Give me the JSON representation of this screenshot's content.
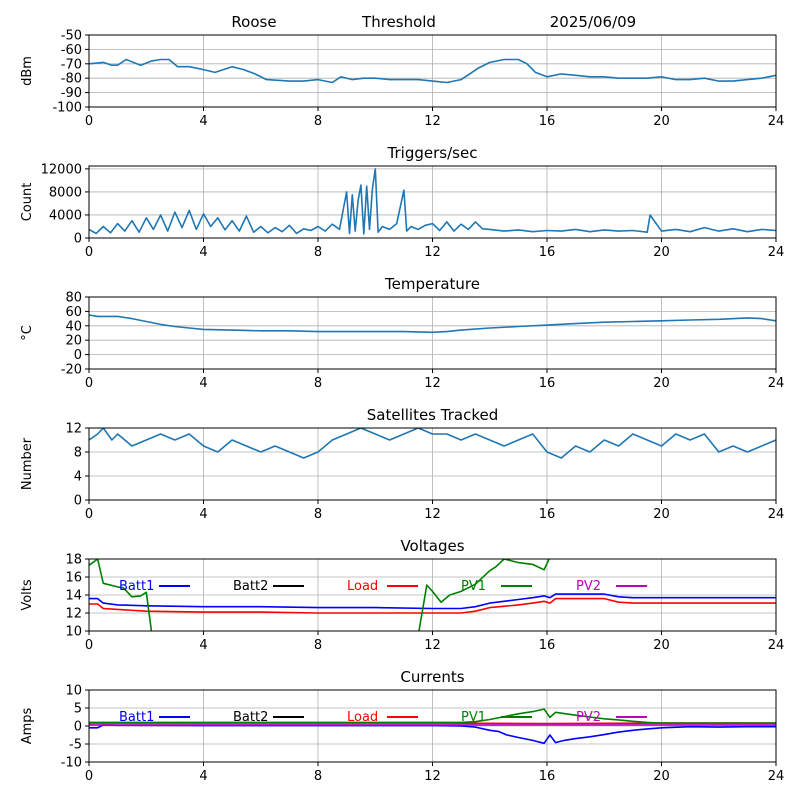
{
  "header": {
    "station": "Roose",
    "label": "Threshold",
    "date": "2025/06/09"
  },
  "colors": {
    "series_default": "#1f77b4",
    "grid": "#b0b0b0",
    "Batt1": "#0000ff",
    "Batt2": "#000000",
    "Load": "#ff0000",
    "PV1": "#008000",
    "PV2": "#bf00bf"
  },
  "chart_data": [
    {
      "type": "line",
      "title": "",
      "ylabel": "dBm",
      "xlim": [
        0,
        24
      ],
      "ylim": [
        -100,
        -50
      ],
      "yticks": [
        -100,
        -90,
        -80,
        -70,
        -60,
        -50
      ],
      "xticks": [
        0,
        4,
        8,
        12,
        16,
        20,
        24
      ],
      "grid": true,
      "series": [
        {
          "x": [
            0,
            0.5,
            0.8,
            1.0,
            1.3,
            1.8,
            2.2,
            2.5,
            2.8,
            3.1,
            3.5,
            4.0,
            4.4,
            5.0,
            5.4,
            5.8,
            6.2,
            7.0,
            7.5,
            8.0,
            8.5,
            8.8,
            9.2,
            9.6,
            10.0,
            10.5,
            11.0,
            11.5,
            12.0,
            12.5,
            13.0,
            13.3,
            13.6,
            14.0,
            14.5,
            15.0,
            15.3,
            15.6,
            16.0,
            16.5,
            17.0,
            17.5,
            18.0,
            18.5,
            19.0,
            19.5,
            20.0,
            20.5,
            21.0,
            21.5,
            22.0,
            22.5,
            23.0,
            23.5,
            24.0
          ],
          "values": [
            -70,
            -69,
            -71,
            -71,
            -67,
            -71,
            -68,
            -67,
            -67,
            -72,
            -72,
            -74,
            -76,
            -72,
            -74,
            -77,
            -81,
            -82,
            -82,
            -81,
            -83,
            -79,
            -81,
            -80,
            -80,
            -81,
            -81,
            -81,
            -82,
            -83,
            -81,
            -77,
            -73,
            -69,
            -67,
            -67,
            -70,
            -76,
            -79,
            -77,
            -78,
            -79,
            -79,
            -80,
            -80,
            -80,
            -79,
            -81,
            -81,
            -80,
            -82,
            -82,
            -81,
            -80,
            -78
          ]
        }
      ]
    },
    {
      "type": "line",
      "title": "Triggers/sec",
      "ylabel": "Count",
      "xlim": [
        0,
        24
      ],
      "ylim": [
        0,
        12500
      ],
      "yticks": [
        0,
        4000,
        8000,
        12000
      ],
      "xticks": [
        0,
        4,
        8,
        12,
        16,
        20,
        24
      ],
      "grid": true,
      "series": [
        {
          "x": [
            0,
            0.25,
            0.5,
            0.75,
            1.0,
            1.25,
            1.5,
            1.75,
            2.0,
            2.25,
            2.5,
            2.75,
            3.0,
            3.25,
            3.5,
            3.75,
            4.0,
            4.25,
            4.5,
            4.75,
            5.0,
            5.25,
            5.5,
            5.75,
            6.0,
            6.25,
            6.5,
            6.75,
            7.0,
            7.25,
            7.5,
            7.75,
            8.0,
            8.25,
            8.5,
            8.75,
            9.0,
            9.1,
            9.2,
            9.3,
            9.4,
            9.5,
            9.6,
            9.7,
            9.8,
            9.9,
            10.0,
            10.1,
            10.25,
            10.5,
            10.75,
            11.0,
            11.1,
            11.25,
            11.5,
            11.75,
            12.0,
            12.25,
            12.5,
            12.75,
            13.0,
            13.25,
            13.5,
            13.75,
            14.0,
            14.5,
            15.0,
            15.5,
            16.0,
            16.5,
            17.0,
            17.5,
            18.0,
            18.5,
            19.0,
            19.5,
            19.6,
            20.0,
            20.5,
            21.0,
            21.5,
            22.0,
            22.5,
            23.0,
            23.5,
            24.0
          ],
          "values": [
            1500,
            800,
            2000,
            900,
            2500,
            1200,
            3000,
            1000,
            3500,
            1500,
            4000,
            1200,
            4500,
            1800,
            4800,
            1500,
            4200,
            2000,
            3500,
            1400,
            3000,
            1200,
            3800,
            1000,
            2000,
            900,
            1800,
            1100,
            2200,
            800,
            1600,
            1300,
            2000,
            1200,
            2400,
            1500,
            8000,
            800,
            7500,
            1200,
            6500,
            9200,
            700,
            9000,
            1500,
            8500,
            12000,
            1000,
            2000,
            1500,
            2500,
            8300,
            1200,
            2000,
            1500,
            2200,
            2500,
            1300,
            2800,
            1200,
            2400,
            1500,
            2800,
            1600,
            1500,
            1200,
            1400,
            1100,
            1300,
            1200,
            1500,
            1100,
            1400,
            1200,
            1300,
            1000,
            4000,
            1200,
            1500,
            1100,
            1800,
            1200,
            1600,
            1100,
            1500,
            1300
          ]
        }
      ]
    },
    {
      "type": "line",
      "title": "Temperature",
      "ylabel": "°C",
      "xlim": [
        0,
        24
      ],
      "ylim": [
        -20,
        80
      ],
      "yticks": [
        -20,
        0,
        20,
        40,
        60,
        80
      ],
      "xticks": [
        0,
        4,
        8,
        12,
        16,
        20,
        24
      ],
      "grid": true,
      "series": [
        {
          "x": [
            0,
            0.3,
            1.0,
            1.5,
            2.0,
            2.5,
            3.0,
            3.5,
            4.0,
            5.0,
            6.0,
            7.0,
            8.0,
            9.0,
            10.0,
            11.0,
            12.0,
            12.5,
            13.0,
            14.0,
            15.0,
            16.0,
            17.0,
            18.0,
            19.0,
            20.0,
            21.0,
            22.0,
            23.0,
            23.5,
            24.0
          ],
          "values": [
            55,
            53,
            53,
            50,
            46,
            42,
            39,
            37,
            35,
            34,
            33,
            33,
            32,
            32,
            32,
            32,
            31,
            32,
            34,
            37,
            39,
            41,
            43,
            45,
            46,
            47,
            48,
            49,
            51,
            50,
            47
          ]
        }
      ]
    },
    {
      "type": "line",
      "title": "Satellites Tracked",
      "ylabel": "Number",
      "xlim": [
        0,
        24
      ],
      "ylim": [
        0,
        12
      ],
      "yticks": [
        0,
        4,
        8,
        12
      ],
      "xticks": [
        0,
        4,
        8,
        12,
        16,
        20,
        24
      ],
      "grid": true,
      "series": [
        {
          "x": [
            0,
            0.3,
            0.5,
            0.8,
            1.0,
            1.5,
            2.0,
            2.5,
            3.0,
            3.5,
            4.0,
            4.5,
            5.0,
            5.5,
            6.0,
            6.5,
            7.0,
            7.5,
            8.0,
            8.5,
            9.0,
            9.5,
            10.0,
            10.5,
            11.0,
            11.5,
            12.0,
            12.5,
            13.0,
            13.5,
            14.0,
            14.5,
            15.0,
            15.5,
            16.0,
            16.5,
            17.0,
            17.5,
            18.0,
            18.5,
            19.0,
            19.5,
            20.0,
            20.5,
            21.0,
            21.5,
            22.0,
            22.5,
            23.0,
            23.5,
            24.0
          ],
          "values": [
            10,
            11,
            12,
            10,
            11,
            9,
            10,
            11,
            10,
            11,
            9,
            8,
            10,
            9,
            8,
            9,
            8,
            7,
            8,
            10,
            11,
            12,
            11,
            10,
            11,
            12,
            11,
            11,
            10,
            11,
            10,
            9,
            10,
            11,
            8,
            7,
            9,
            8,
            10,
            9,
            11,
            10,
            9,
            11,
            10,
            11,
            8,
            9,
            8,
            9,
            10
          ]
        }
      ]
    },
    {
      "type": "line",
      "title": "Voltages",
      "ylabel": "Volts",
      "xlim": [
        0,
        24
      ],
      "ylim": [
        10,
        18
      ],
      "yticks": [
        10,
        12,
        14,
        16,
        18
      ],
      "xticks": [
        0,
        4,
        8,
        12,
        16,
        20,
        24
      ],
      "grid": true,
      "legend": "top, inline",
      "series": [
        {
          "name": "Batt1",
          "x": [
            0,
            0.3,
            0.5,
            1.0,
            2.0,
            4.0,
            6.0,
            8.0,
            10.0,
            12.0,
            13.0,
            13.5,
            14.0,
            15.0,
            15.5,
            15.9,
            16.1,
            16.3,
            18.0,
            18.5,
            19.0,
            20.0,
            22.0,
            24.0
          ],
          "values": [
            13.6,
            13.6,
            13.1,
            12.9,
            12.8,
            12.7,
            12.7,
            12.6,
            12.6,
            12.5,
            12.5,
            12.7,
            13.1,
            13.5,
            13.7,
            13.9,
            13.7,
            14.1,
            14.1,
            13.8,
            13.7,
            13.7,
            13.7,
            13.7
          ]
        },
        {
          "name": "Load",
          "x": [
            0,
            0.3,
            0.5,
            1.0,
            2.0,
            4.0,
            6.0,
            8.0,
            10.0,
            12.0,
            13.0,
            13.5,
            14.0,
            15.0,
            15.5,
            15.9,
            16.1,
            16.3,
            18.0,
            18.5,
            19.0,
            20.0,
            22.0,
            24.0
          ],
          "values": [
            13.0,
            13.0,
            12.5,
            12.4,
            12.2,
            12.1,
            12.1,
            12.0,
            12.0,
            12.0,
            12.0,
            12.2,
            12.6,
            12.9,
            13.1,
            13.3,
            13.1,
            13.6,
            13.6,
            13.2,
            13.1,
            13.1,
            13.1,
            13.1
          ]
        },
        {
          "name": "PV1",
          "x": [
            0,
            0.3,
            0.5,
            1.0,
            1.2,
            1.5,
            1.8,
            2.0,
            2.2,
            11.5,
            11.8,
            12.0,
            12.3,
            12.6,
            13.0,
            13.5,
            14.0,
            14.2,
            14.5,
            15.0,
            15.5,
            15.9,
            16.1
          ],
          "values": [
            17.3,
            18.0,
            15.3,
            14.9,
            14.8,
            13.8,
            13.9,
            14.3,
            9.5,
            9.5,
            15.1,
            14.4,
            13.2,
            14.0,
            14.4,
            15.2,
            16.7,
            17.1,
            18.0,
            17.6,
            17.4,
            16.8,
            18.2
          ]
        },
        {
          "name": "Batt2",
          "x": [],
          "values": []
        },
        {
          "name": "PV2",
          "x": [],
          "values": []
        }
      ]
    },
    {
      "type": "line",
      "title": "Currents",
      "ylabel": "Amps",
      "xlim": [
        0,
        24
      ],
      "ylim": [
        -10,
        10
      ],
      "yticks": [
        -10,
        -5,
        0,
        5,
        10
      ],
      "xticks": [
        0,
        4,
        8,
        12,
        16,
        20,
        24
      ],
      "grid": true,
      "legend": "top, inline",
      "series": [
        {
          "name": "Batt1",
          "x": [
            0,
            0.3,
            0.5,
            1.0,
            4.0,
            8.0,
            12.0,
            13.0,
            13.5,
            14.0,
            14.3,
            14.6,
            15.0,
            15.5,
            15.9,
            16.1,
            16.3,
            16.6,
            17.0,
            17.5,
            18.0,
            18.5,
            19.0,
            19.5,
            20.0,
            21.0,
            22.0,
            23.0,
            24.0
          ],
          "values": [
            -0.5,
            -0.5,
            0.3,
            0.2,
            0.1,
            0.1,
            0.1,
            0.0,
            -0.3,
            -1.2,
            -1.5,
            -2.5,
            -3.2,
            -4.0,
            -4.8,
            -2.5,
            -4.6,
            -4.0,
            -3.5,
            -3.0,
            -2.4,
            -1.7,
            -1.2,
            -0.8,
            -0.5,
            -0.2,
            -0.3,
            -0.2,
            -0.2
          ]
        },
        {
          "name": "Load",
          "x": [
            0,
            4,
            8,
            12,
            16,
            20,
            24
          ],
          "values": [
            0.8,
            0.8,
            0.8,
            0.8,
            0.7,
            0.8,
            0.8
          ]
        },
        {
          "name": "PV1",
          "x": [
            0,
            4,
            8,
            12,
            13.0,
            13.5,
            14.0,
            14.5,
            15.0,
            15.5,
            15.9,
            16.1,
            16.3,
            17.0,
            17.5,
            18.0,
            18.5,
            19.0,
            19.5,
            20.0,
            24.0
          ],
          "values": [
            1.0,
            1.0,
            1.0,
            1.0,
            1.0,
            1.2,
            1.8,
            2.6,
            3.4,
            4.0,
            4.7,
            2.4,
            3.8,
            3.0,
            2.5,
            2.0,
            1.7,
            1.3,
            1.0,
            0.8,
            0.8
          ]
        },
        {
          "name": "Batt2",
          "x": [],
          "values": []
        },
        {
          "name": "PV2",
          "x": [
            0,
            4,
            8,
            12,
            16,
            20,
            24
          ],
          "values": [
            0.3,
            0.3,
            0.3,
            0.3,
            0.3,
            0.3,
            0.3
          ]
        }
      ]
    }
  ]
}
